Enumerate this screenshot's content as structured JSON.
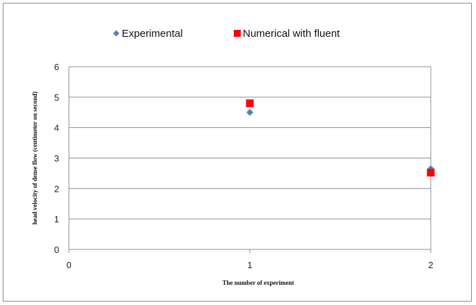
{
  "chart_data": {
    "type": "scatter",
    "xlabel": "The number of experiment",
    "ylabel": "head velocity of dense flow (centimeter on second)",
    "xlim": [
      0,
      2
    ],
    "ylim": [
      0,
      6
    ],
    "x_ticks": [
      "0",
      "1",
      "2"
    ],
    "y_ticks": [
      "0",
      "1",
      "2",
      "3",
      "4",
      "5",
      "6"
    ],
    "grid": "horizontal",
    "legend_position": "top",
    "series": [
      {
        "name": "Experimental",
        "marker": "diamond",
        "color": "#4f81bd",
        "x": [
          1,
          2
        ],
        "y": [
          4.5,
          2.65
        ]
      },
      {
        "name": "Numerical with fluent",
        "marker": "square",
        "color": "#ff0000",
        "x": [
          1,
          2
        ],
        "y": [
          4.8,
          2.52
        ]
      }
    ]
  }
}
